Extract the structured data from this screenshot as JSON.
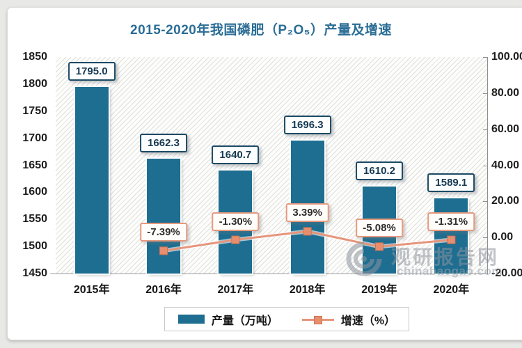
{
  "watermark": {
    "cn": "观研报告网",
    "en": "chinabaogao.com"
  },
  "chart_data": {
    "type": "bar+line combo",
    "title": "2015-2020年我国磷肥（P₂O₅）产量及增速",
    "categories": [
      "2015年",
      "2016年",
      "2017年",
      "2018年",
      "2019年",
      "2020年"
    ],
    "series": [
      {
        "name": "产量（万吨）",
        "type": "bar",
        "axis": "left",
        "color": "#1e6e91",
        "values": [
          1795.0,
          1662.3,
          1640.7,
          1696.3,
          1610.2,
          1589.1
        ],
        "labels": [
          "1795.0",
          "1662.3",
          "1640.7",
          "1696.3",
          "1610.2",
          "1589.1"
        ]
      },
      {
        "name": "增速（%）",
        "type": "line",
        "axis": "right",
        "color": "#e6957b",
        "marker_color": "#e78e6d",
        "values": [
          null,
          -7.39,
          -1.3,
          3.39,
          -5.08,
          -1.31
        ],
        "labels": [
          null,
          "-7.39%",
          "-1.30%",
          "3.39%",
          "-5.08%",
          "-1.31%"
        ]
      }
    ],
    "left_axis": {
      "min": 1450,
      "max": 1850,
      "step": 50,
      "ticks": [
        "1850",
        "1800",
        "1750",
        "1700",
        "1650",
        "1600",
        "1550",
        "1500",
        "1450"
      ]
    },
    "right_axis": {
      "min": -20,
      "max": 100,
      "step": 20,
      "ticks": [
        "100.00",
        "80.00",
        "60.00",
        "40.00",
        "20.00",
        "0.00",
        "-20.00"
      ]
    },
    "legend": [
      "产量（万吨）",
      "增速（%）"
    ],
    "legend_position": "bottom",
    "grid": "diagonal-hatch plot background, no gridlines"
  }
}
